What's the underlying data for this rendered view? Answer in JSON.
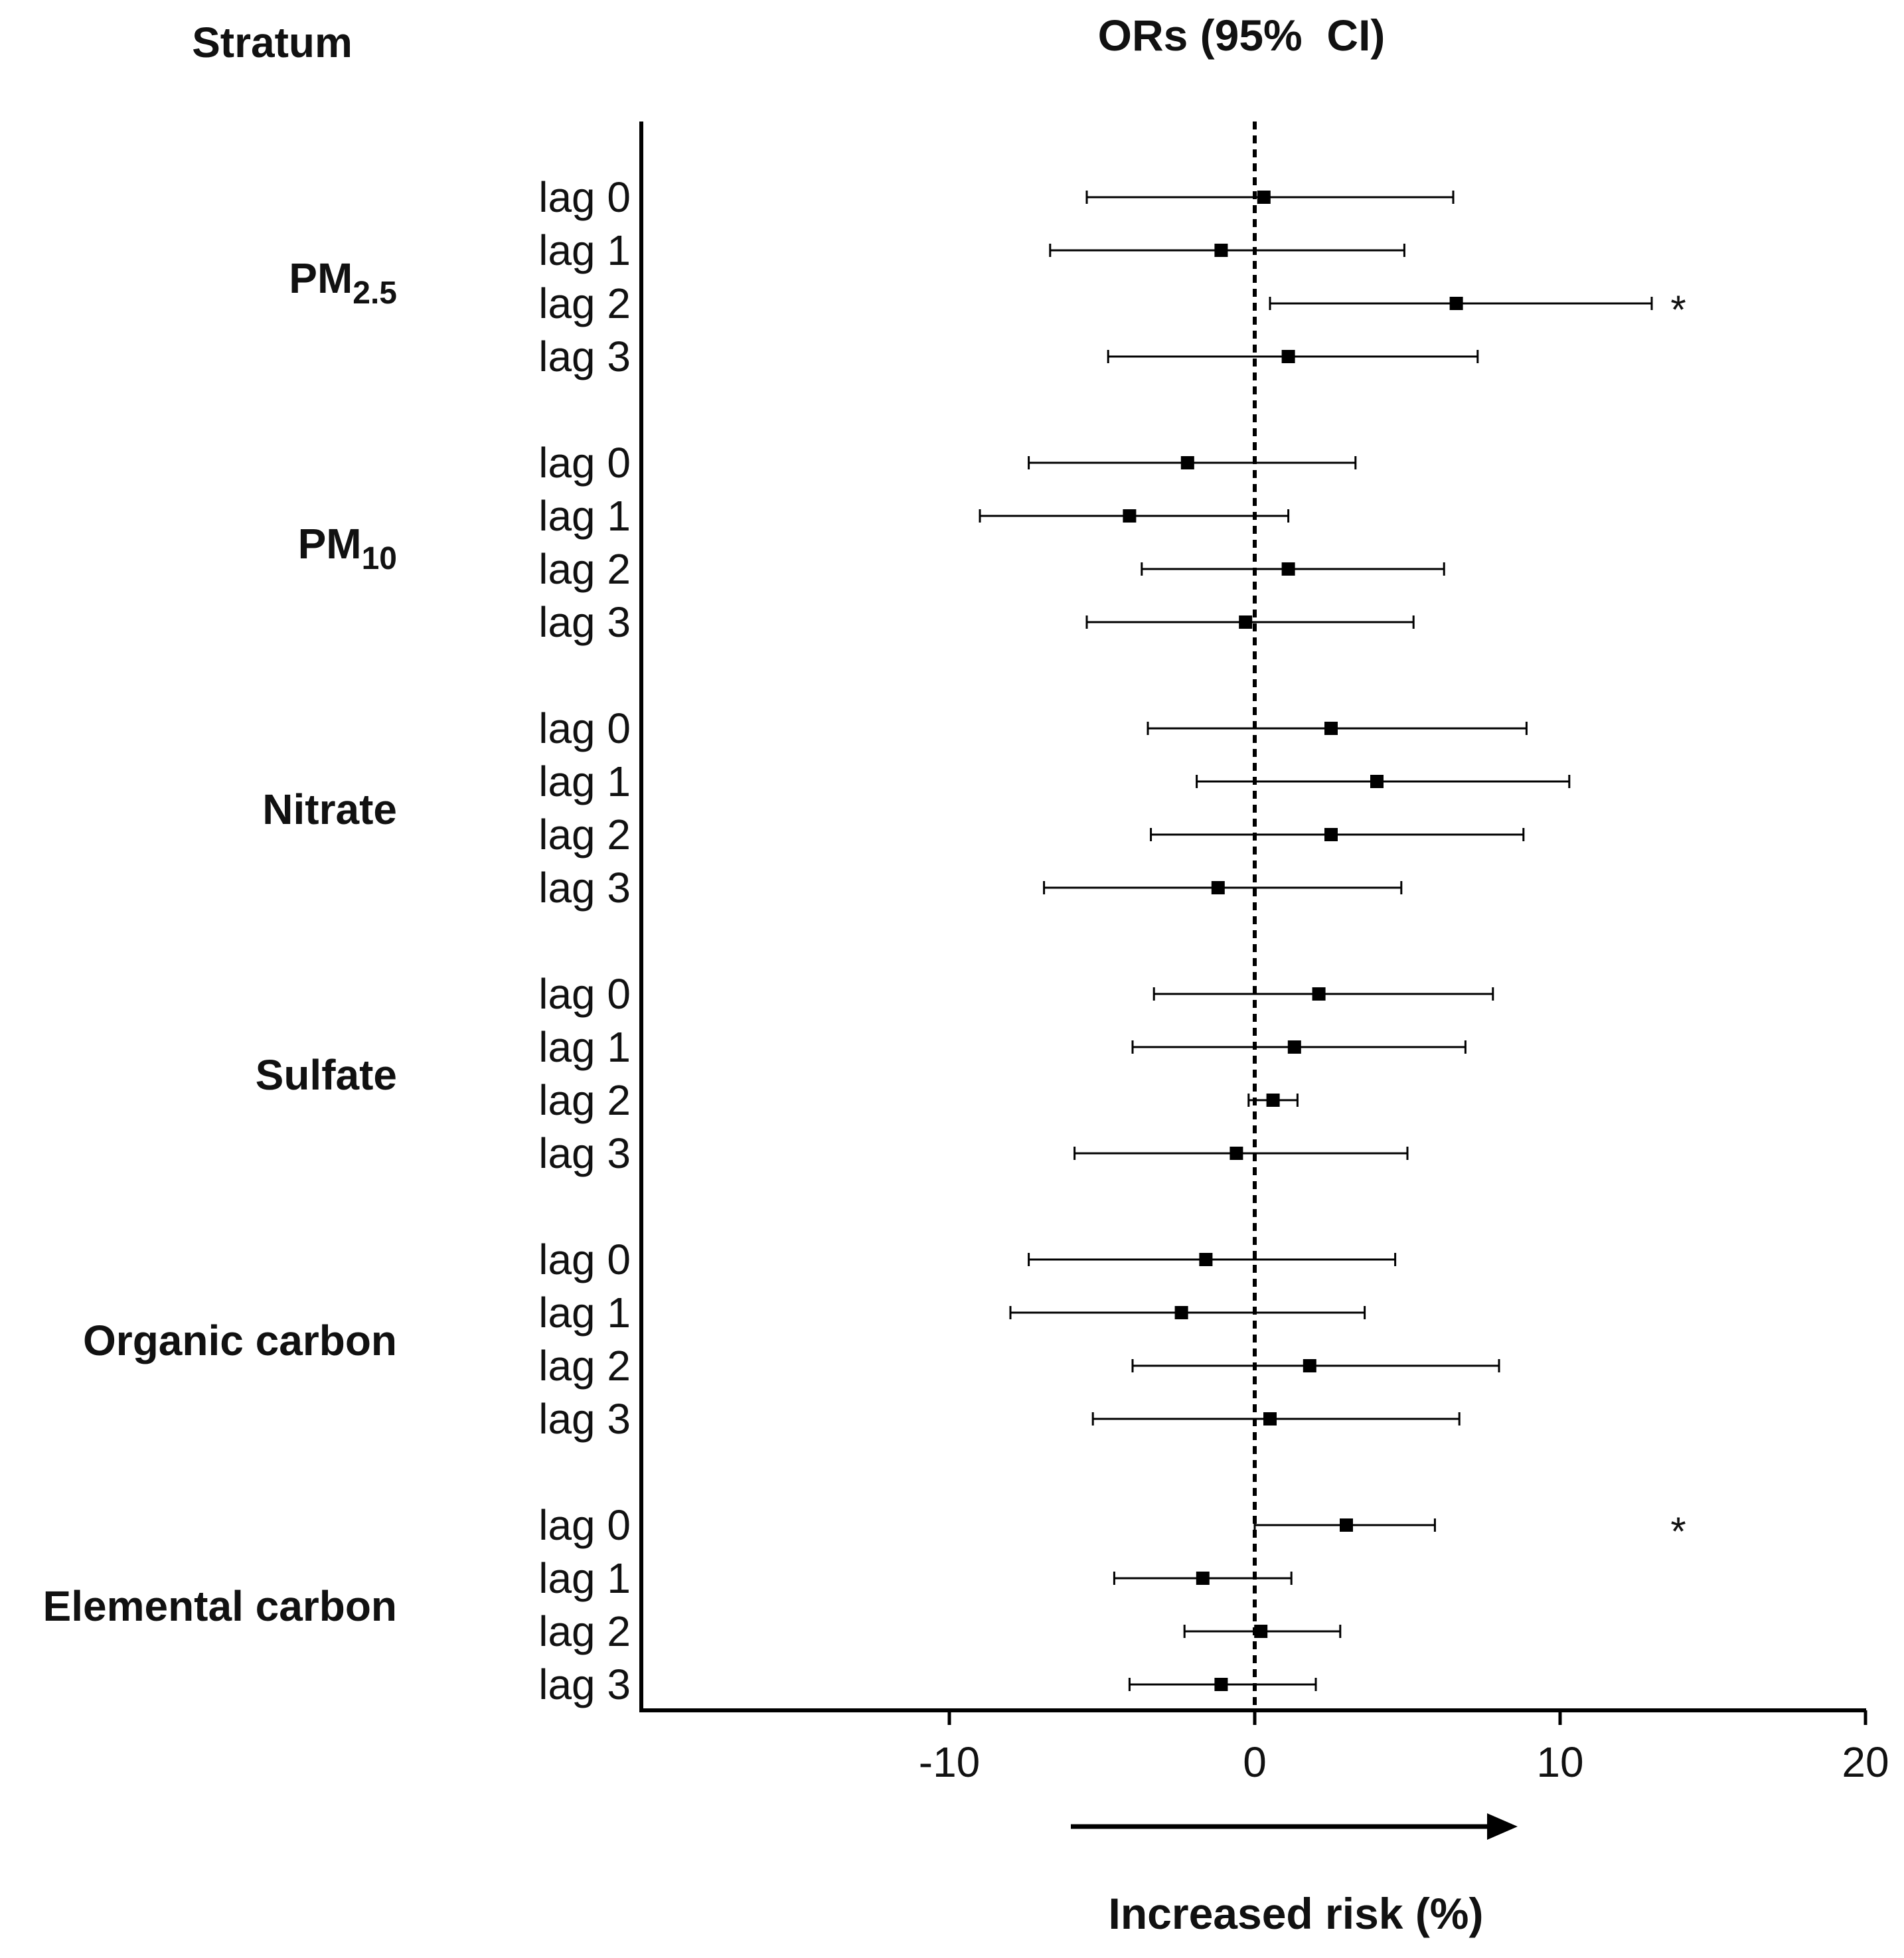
{
  "chart_data": {
    "type": "forest",
    "title": "ORs (95%  CI)",
    "stratum_header": "Stratum",
    "xlabel": "Increased risk (%)",
    "xlim": [
      -20,
      20
    ],
    "xticks": [
      -10,
      0,
      10,
      20
    ],
    "reference_line": 0,
    "significance_marker": "*",
    "groups": [
      {
        "label": "PM",
        "subscript": "2.5",
        "rows": [
          {
            "lag": "lag 0",
            "est": 0.3,
            "lo": -5.5,
            "hi": 6.5,
            "sig": false
          },
          {
            "lag": "lag 1",
            "est": -1.1,
            "lo": -6.7,
            "hi": 4.9,
            "sig": false
          },
          {
            "lag": "lag 2",
            "est": 6.6,
            "lo": 0.5,
            "hi": 13.0,
            "sig": true
          },
          {
            "lag": "lag 3",
            "est": 1.1,
            "lo": -4.8,
            "hi": 7.3,
            "sig": false
          }
        ]
      },
      {
        "label": "PM",
        "subscript": "10",
        "rows": [
          {
            "lag": "lag 0",
            "est": -2.2,
            "lo": -7.4,
            "hi": 3.3,
            "sig": false
          },
          {
            "lag": "lag 1",
            "est": -4.1,
            "lo": -9.0,
            "hi": 1.1,
            "sig": false
          },
          {
            "lag": "lag 2",
            "est": 1.1,
            "lo": -3.7,
            "hi": 6.2,
            "sig": false
          },
          {
            "lag": "lag 3",
            "est": -0.3,
            "lo": -5.5,
            "hi": 5.2,
            "sig": false
          }
        ]
      },
      {
        "label": "Nitrate",
        "subscript": "",
        "rows": [
          {
            "lag": "lag 0",
            "est": 2.5,
            "lo": -3.5,
            "hi": 8.9,
            "sig": false
          },
          {
            "lag": "lag 1",
            "est": 4.0,
            "lo": -1.9,
            "hi": 10.3,
            "sig": false
          },
          {
            "lag": "lag 2",
            "est": 2.5,
            "lo": -3.4,
            "hi": 8.8,
            "sig": false
          },
          {
            "lag": "lag 3",
            "est": -1.2,
            "lo": -6.9,
            "hi": 4.8,
            "sig": false
          }
        ]
      },
      {
        "label": "Sulfate",
        "subscript": "",
        "rows": [
          {
            "lag": "lag 0",
            "est": 2.1,
            "lo": -3.3,
            "hi": 7.8,
            "sig": false
          },
          {
            "lag": "lag 1",
            "est": 1.3,
            "lo": -4.0,
            "hi": 6.9,
            "sig": false
          },
          {
            "lag": "lag 2",
            "est": 0.6,
            "lo": -0.2,
            "hi": 1.4,
            "sig": false
          },
          {
            "lag": "lag 3",
            "est": -0.6,
            "lo": -5.9,
            "hi": 5.0,
            "sig": false
          }
        ]
      },
      {
        "label": "Organic carbon",
        "subscript": "",
        "rows": [
          {
            "lag": "lag 0",
            "est": -1.6,
            "lo": -7.4,
            "hi": 4.6,
            "sig": false
          },
          {
            "lag": "lag 1",
            "est": -2.4,
            "lo": -8.0,
            "hi": 3.6,
            "sig": false
          },
          {
            "lag": "lag 2",
            "est": 1.8,
            "lo": -4.0,
            "hi": 8.0,
            "sig": false
          },
          {
            "lag": "lag 3",
            "est": 0.5,
            "lo": -5.3,
            "hi": 6.7,
            "sig": false
          }
        ]
      },
      {
        "label": "Elemental carbon",
        "subscript": "",
        "rows": [
          {
            "lag": "lag 0",
            "est": 3.0,
            "lo": 0.0,
            "hi": 5.9,
            "sig": true
          },
          {
            "lag": "lag 1",
            "est": -1.7,
            "lo": -4.6,
            "hi": 1.2,
            "sig": false
          },
          {
            "lag": "lag 2",
            "est": 0.2,
            "lo": -2.3,
            "hi": 2.8,
            "sig": false
          },
          {
            "lag": "lag 3",
            "est": -1.1,
            "lo": -4.1,
            "hi": 2.0,
            "sig": false
          }
        ]
      }
    ]
  }
}
